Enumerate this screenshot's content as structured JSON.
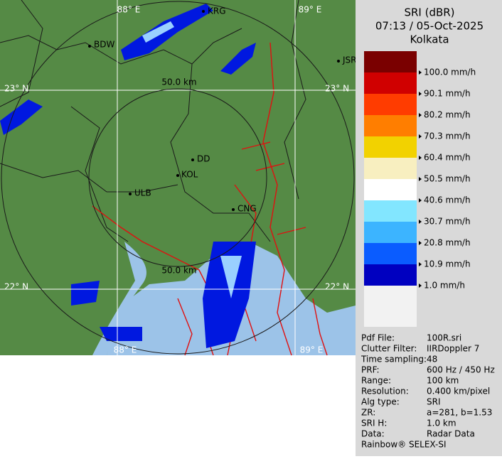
{
  "header": {
    "product": "SRI (dBR)",
    "time": "07:13 / 05-Oct-2025",
    "site": "Kolkata"
  },
  "map": {
    "grid_labels": [
      "88° E",
      "89° E",
      "23° N",
      "23° N",
      "22° N",
      "22° N",
      "88° E",
      "89° E"
    ],
    "range_labels": [
      "50.0 km",
      "50.0 km"
    ],
    "places": [
      "BDW",
      "KRG",
      "JSR",
      "DD",
      "KOL",
      "ULB",
      "CNG"
    ]
  },
  "legend": [
    {
      "color": "#7a0000",
      "label": "100.0 mm/h"
    },
    {
      "color": "#d00000",
      "label": "90.1 mm/h"
    },
    {
      "color": "#ff3c00",
      "label": "80.2 mm/h"
    },
    {
      "color": "#ff7e00",
      "label": "70.3 mm/h"
    },
    {
      "color": "#f2d200",
      "label": "60.4 mm/h"
    },
    {
      "color": "#f8efc0",
      "label": "50.5 mm/h"
    },
    {
      "color": "#ffffff",
      "label": "40.6 mm/h"
    },
    {
      "color": "#82e6ff",
      "label": "30.7 mm/h"
    },
    {
      "color": "#3cb4ff",
      "label": "20.8 mm/h"
    },
    {
      "color": "#0a5cff",
      "label": "10.9 mm/h"
    },
    {
      "color": "#0000c0",
      "label": "1.0 mm/h"
    }
  ],
  "info": [
    [
      "Pdf File:",
      "100R.sri"
    ],
    [
      "Clutter Filter:",
      "IIRDoppler 7"
    ],
    [
      "Time sampling:",
      "48"
    ],
    [
      "PRF:",
      "600 Hz / 450 Hz"
    ],
    [
      "Range:",
      "100 km"
    ],
    [
      "Resolution:",
      "0.400 km/pixel"
    ],
    [
      "Alg type:",
      "SRI"
    ],
    [
      "ZR:",
      "a=281, b=1.53"
    ],
    [
      "SRI H:",
      "1.0 km"
    ],
    [
      "Data:",
      "Radar Data"
    ]
  ],
  "footer": "Rainbow® SELEX-SI"
}
